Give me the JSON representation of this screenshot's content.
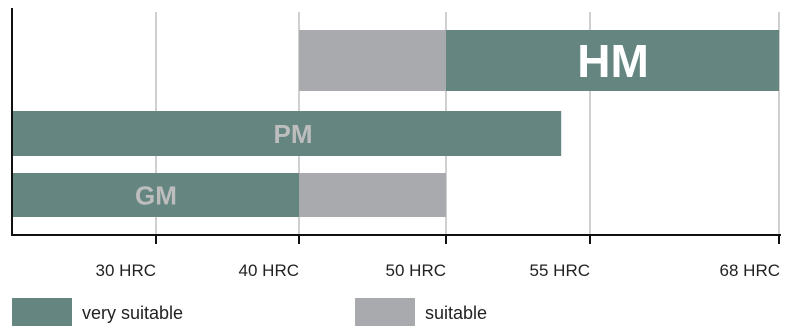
{
  "chart_data": {
    "type": "bar",
    "orientation": "horizontal-range",
    "x_tick_labels": [
      "30 HRC",
      "40 HRC",
      "50 HRC",
      "55 HRC",
      "68 HRC"
    ],
    "rows": [
      {
        "label": "HM",
        "segments": [
          {
            "category": "suitable",
            "from": "40 HRC",
            "to": "50 HRC"
          },
          {
            "category": "very suitable",
            "from": "50 HRC",
            "to": "68 HRC"
          }
        ]
      },
      {
        "label": "PM",
        "segments": [
          {
            "category": "very suitable",
            "from": "below 30 HRC",
            "to": "about 54 HRC"
          }
        ]
      },
      {
        "label": "GM",
        "segments": [
          {
            "category": "very suitable",
            "from": "below 30 HRC",
            "to": "40 HRC"
          },
          {
            "category": "suitable",
            "from": "40 HRC",
            "to": "50 HRC"
          }
        ]
      }
    ],
    "legend": [
      {
        "name": "very suitable",
        "color": "#648580"
      },
      {
        "name": "suitable",
        "color": "#a9aaad"
      }
    ],
    "legend_position": "bottom",
    "grid": true,
    "label_colors": {
      "HM": "#ffffff",
      "PM": "#bdbdbd",
      "GM": "#bdbdbd"
    }
  }
}
